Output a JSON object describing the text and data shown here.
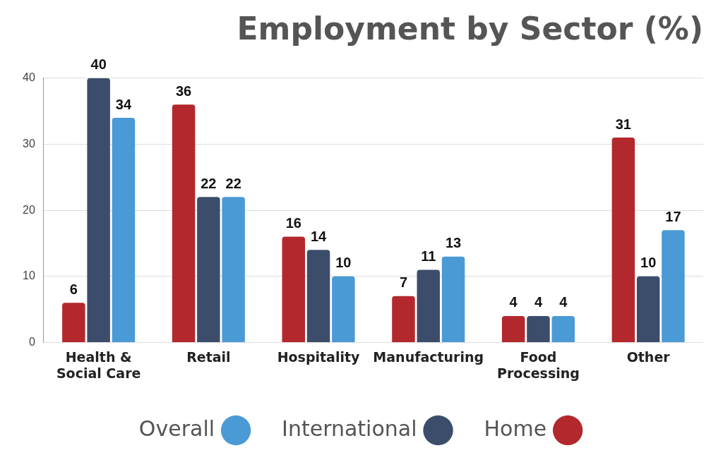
{
  "chart_data": {
    "type": "bar",
    "title": "Employment by Sector (%)",
    "categories": [
      "Health &\nSocial Care",
      "Retail",
      "Hospitality",
      "Manufacturing",
      "Food\nProcessing",
      "Other"
    ],
    "series": [
      {
        "name": "Home",
        "color": "#b3282d",
        "values": [
          6,
          36,
          16,
          7,
          4,
          31
        ]
      },
      {
        "name": "International",
        "color": "#3b4d6b",
        "values": [
          40,
          22,
          14,
          11,
          4,
          10
        ]
      },
      {
        "name": "Overall",
        "color": "#4a9ad6",
        "values": [
          34,
          22,
          10,
          13,
          4,
          17
        ]
      }
    ],
    "ylim": [
      0,
      40
    ],
    "yticks": [
      0,
      10,
      20,
      30,
      40
    ],
    "grid": "y",
    "legend": "bottom",
    "data_labels": true
  }
}
